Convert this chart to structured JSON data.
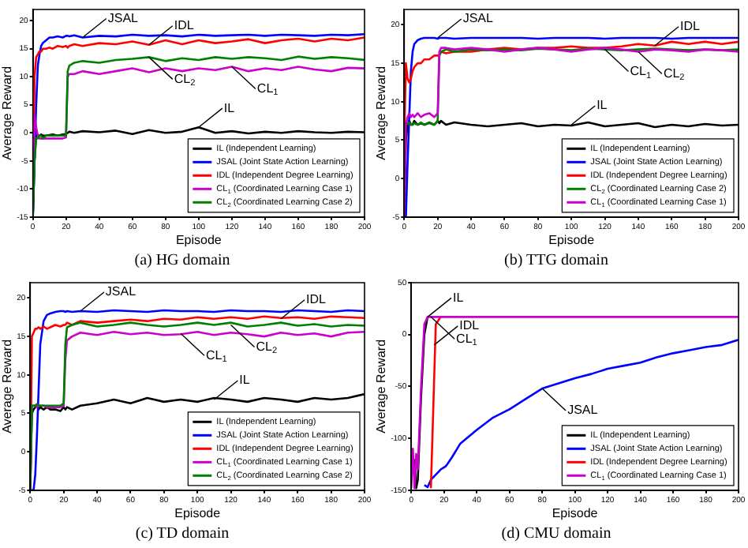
{
  "chart_data": [
    {
      "type": "line",
      "title": "(a) HG domain",
      "xlabel": "Episode",
      "ylabel": "Average Reward",
      "legend": "bottom right",
      "grid": false,
      "marker": "none",
      "x": [
        0,
        1,
        2,
        3,
        4,
        5,
        6,
        8,
        10,
        12,
        15,
        18,
        20,
        21,
        22,
        25,
        30,
        40,
        50,
        60,
        70,
        80,
        90,
        100,
        110,
        120,
        130,
        140,
        150,
        160,
        170,
        180,
        190,
        200
      ],
      "xlim": [
        0,
        200
      ],
      "xticks": [
        0,
        20,
        40,
        60,
        80,
        100,
        120,
        140,
        160,
        180,
        200
      ],
      "ylim": [
        -15,
        22
      ],
      "yticks": [
        -15,
        -10,
        -5,
        0,
        5,
        10,
        15,
        20
      ],
      "series": [
        {
          "name": "IL (Independent Learning)",
          "color": "#000000",
          "values": [
            -15,
            -5,
            0,
            -0.5,
            -0.5,
            -0.3,
            -0.5,
            -0.5,
            -0.4,
            -0.3,
            -0.5,
            -0.3,
            -0.2,
            0,
            0.2,
            0,
            0.3,
            0.1,
            0.4,
            -0.2,
            0.5,
            0,
            0.2,
            1,
            0,
            0.3,
            -0.1,
            0.2,
            0,
            0.3,
            0.1,
            0,
            0.2,
            0.1
          ]
        },
        {
          "name": "JSAL (Joint State Action Learning)",
          "color": "#0000ff",
          "values": [
            -15,
            -5,
            5,
            12,
            14,
            15.5,
            16,
            16.5,
            17,
            17,
            17.2,
            17,
            17.3,
            17.3,
            17.2,
            17.4,
            17,
            17.3,
            17.2,
            17.5,
            17.3,
            17.4,
            17.2,
            17.5,
            17.3,
            17.4,
            17.5,
            17.3,
            17.5,
            17.4,
            17.3,
            17.5,
            17.4,
            17.6
          ]
        },
        {
          "name": "IDL (Independent Degree Learning)",
          "color": "#ff0000",
          "values": [
            -15,
            10,
            13.5,
            14,
            14.5,
            14.5,
            15,
            15,
            15.2,
            15,
            15.5,
            15.3,
            15.5,
            15.2,
            15.5,
            15.8,
            15.5,
            16,
            15.8,
            16.3,
            15.7,
            16.5,
            15.8,
            16.5,
            16,
            16.3,
            16.7,
            16,
            16.5,
            16.8,
            16.3,
            16.8,
            16.5,
            17
          ]
        },
        {
          "name": "CL$_{1}$ (Coordinated Learning Case 1)",
          "color": "#cc00cc",
          "values": [
            -15,
            3,
            1,
            -0.5,
            -1,
            -1,
            -1,
            -1,
            -1,
            -1,
            -1,
            -1,
            -0.8,
            10,
            10.5,
            10.5,
            11,
            10.5,
            11,
            11.5,
            10.8,
            11.5,
            11,
            11.5,
            11.2,
            11.8,
            11,
            11.5,
            11.2,
            11.8,
            11.3,
            11,
            11.6,
            11.5
          ]
        },
        {
          "name": "CL$_{2}$ (Coordinated Learning Case 2)",
          "color": "#008000",
          "values": [
            -15,
            -5,
            -1,
            -1,
            -0.5,
            -0.5,
            -1,
            -0.5,
            -0.5,
            -0.5,
            -0.5,
            -0.5,
            -0.5,
            11,
            12,
            12.5,
            12.8,
            12.5,
            13,
            13.2,
            13.5,
            12.8,
            13.3,
            13,
            13.5,
            13.2,
            13.5,
            13.3,
            13,
            13.6,
            13.2,
            13.5,
            13.3,
            13
          ]
        }
      ],
      "annotations": [
        {
          "text": "JSAL",
          "x": 30,
          "y": 17
        },
        {
          "text": "IDL",
          "x": 70,
          "y": 15.7
        },
        {
          "text": "CL$_{2}$",
          "x": 70,
          "y": 13.5
        },
        {
          "text": "CL$_{1}$",
          "x": 120,
          "y": 11.8
        },
        {
          "text": "IL",
          "x": 100,
          "y": 1
        }
      ]
    },
    {
      "type": "line",
      "title": "(b) TTG domain",
      "xlabel": "Episode",
      "ylabel": "Average Reward",
      "legend": "bottom right",
      "grid": false,
      "marker": "none",
      "x": [
        0,
        1,
        2,
        3,
        4,
        5,
        6,
        8,
        10,
        12,
        15,
        18,
        20,
        21,
        22,
        25,
        30,
        40,
        50,
        60,
        70,
        80,
        90,
        100,
        110,
        120,
        130,
        140,
        150,
        160,
        170,
        180,
        190,
        200
      ],
      "xlim": [
        0,
        200
      ],
      "xticks": [
        0,
        20,
        40,
        60,
        80,
        100,
        120,
        140,
        160,
        180,
        200
      ],
      "ylim": [
        -5,
        22
      ],
      "yticks": [
        -5,
        0,
        5,
        10,
        15,
        20
      ],
      "series": [
        {
          "name": "IL (Independent Learning)",
          "color": "#000000",
          "values": [
            -5,
            5,
            7,
            7.5,
            7,
            7,
            7.5,
            7,
            7.2,
            7,
            7.3,
            7,
            7.5,
            7.2,
            7.5,
            7,
            7.3,
            7,
            6.8,
            7,
            7.2,
            6.8,
            7,
            6.9,
            7.3,
            6.8,
            7,
            7.2,
            6.7,
            7,
            6.8,
            7.1,
            6.9,
            7
          ]
        },
        {
          "name": "JSAL (Joint State Action Learning)",
          "color": "#0000ff",
          "values": [
            -5,
            -5,
            2,
            8,
            14,
            16.5,
            17.5,
            18,
            18.2,
            18.3,
            18.3,
            18.3,
            18.2,
            18.3,
            18.3,
            18.3,
            18.2,
            18.3,
            18.3,
            18.3,
            18.3,
            18.2,
            18.3,
            18.3,
            18.3,
            18.2,
            18.3,
            18.3,
            18.3,
            18.2,
            18.3,
            18.3,
            18.3,
            18.3
          ]
        },
        {
          "name": "IDL (Independent Degree Learning)",
          "color": "#ff0000",
          "values": [
            5,
            15,
            13,
            12.5,
            13,
            14,
            14.5,
            15,
            15,
            15.5,
            15.5,
            16,
            16,
            16,
            16.5,
            16.3,
            16.5,
            16.5,
            16.8,
            17,
            16.8,
            17,
            17,
            17.2,
            17,
            17,
            17.2,
            17.5,
            17.3,
            17.8,
            17.5,
            17.8,
            17.5,
            17.8
          ]
        },
        {
          "name": "CL$_{2}$ (Coordinated Learning Case 2)",
          "color": "#008000",
          "values": [
            null,
            null,
            7,
            7.3,
            7,
            7,
            7.2,
            7,
            7.3,
            7,
            7.2,
            7,
            7.5,
            16,
            16.5,
            16.8,
            16.5,
            16.8,
            16.7,
            16.8,
            16.7,
            16.9,
            16.8,
            16.7,
            16.9,
            16.8,
            16.7,
            16.8,
            16.9,
            16.8,
            16.7,
            16.8,
            16.7,
            16.8
          ]
        },
        {
          "name": "CL$_{1}$ (Coordinated Learning Case 1)",
          "color": "#cc00cc",
          "values": [
            -5,
            7,
            8,
            8.5,
            8,
            8.3,
            8,
            8.5,
            8,
            8.3,
            8.5,
            8,
            8.5,
            16.5,
            17,
            17,
            16.8,
            17,
            16.8,
            16.5,
            16.8,
            17,
            16.8,
            16.5,
            16.8,
            17,
            16.8,
            16.5,
            16.8,
            16.7,
            16.5,
            16.8,
            16.7,
            16.5
          ]
        }
      ],
      "annotations": [
        {
          "text": "JSAL",
          "x": 20,
          "y": 18.3
        },
        {
          "text": "IDL",
          "x": 150,
          "y": 17.3
        },
        {
          "text": "CL$_{1}$",
          "x": 120,
          "y": 16.8
        },
        {
          "text": "CL$_{2}$",
          "x": 140,
          "y": 16.5
        },
        {
          "text": "IL",
          "x": 100,
          "y": 7
        }
      ]
    },
    {
      "type": "line",
      "title": "(c) TD domain",
      "xlabel": "Episode",
      "ylabel": "Average Reward",
      "legend": "bottom right",
      "grid": false,
      "marker": "none",
      "x": [
        0,
        1,
        2,
        3,
        4,
        5,
        6,
        8,
        10,
        12,
        15,
        18,
        20,
        21,
        22,
        25,
        30,
        40,
        50,
        60,
        70,
        80,
        90,
        100,
        110,
        120,
        130,
        140,
        150,
        160,
        170,
        180,
        190,
        200
      ],
      "xlim": [
        0,
        200
      ],
      "xticks": [
        0,
        20,
        40,
        60,
        80,
        100,
        120,
        140,
        160,
        180,
        200
      ],
      "ylim": [
        -5,
        22
      ],
      "yticks": [
        -5,
        0,
        5,
        10,
        15,
        20
      ],
      "series": [
        {
          "name": "IL (Independent Learning)",
          "color": "#000000",
          "values": [
            -5,
            5,
            5.5,
            5.8,
            6,
            5.5,
            5.8,
            5.5,
            5.8,
            5.5,
            5.5,
            5.3,
            5.8,
            5.5,
            5.8,
            5.5,
            6,
            6.3,
            6.8,
            6.3,
            7,
            6.5,
            6.8,
            6.5,
            7,
            6.8,
            6.5,
            7,
            6.8,
            6.5,
            7,
            6.8,
            7,
            7.5
          ]
        },
        {
          "name": "JSAL (Joint State Action Learning)",
          "color": "#0000ff",
          "values": [
            -5,
            -5,
            -5,
            -3,
            2,
            8,
            14,
            17,
            17.8,
            18,
            18.2,
            18.3,
            18.3,
            18.2,
            18.3,
            18.2,
            18.3,
            18.2,
            18.4,
            18.3,
            18.2,
            18.4,
            18.3,
            18.3,
            18.2,
            18.4,
            18.3,
            18.3,
            18.2,
            18.4,
            18.3,
            18.2,
            18.4,
            18.3
          ]
        },
        {
          "name": "IDL (Independent Degree Learning)",
          "color": "#ff0000",
          "values": [
            -5,
            15,
            15.5,
            16,
            16,
            16.2,
            16,
            16.3,
            16,
            16.2,
            16.5,
            16.3,
            16.5,
            16.5,
            16.8,
            16.5,
            17,
            16.8,
            17,
            17.2,
            17,
            17.3,
            17.2,
            17.5,
            17.3,
            17.5,
            17.3,
            17.6,
            17.4,
            17.5,
            17.3,
            17.6,
            17.5,
            17.4
          ]
        },
        {
          "name": "CL$_{1}$ (Coordinated Learning Case 1)",
          "color": "#cc00cc",
          "values": [
            -5,
            6,
            6,
            6,
            5.8,
            6,
            6,
            6,
            5.8,
            5.8,
            5.8,
            5.8,
            6,
            12,
            14.5,
            15,
            15.5,
            15.2,
            15.6,
            15.3,
            15.5,
            15.2,
            15.3,
            15.6,
            15.2,
            15.5,
            15.3,
            15,
            15.5,
            15.2,
            15.4,
            15,
            15.5,
            15.6
          ]
        },
        {
          "name": "CL$_{2}$ (Coordinated Learning Case 2)",
          "color": "#008000",
          "values": [
            -5,
            6,
            6,
            6,
            6.2,
            6,
            6,
            6,
            6,
            6,
            6,
            6,
            6.3,
            14,
            16.2,
            16.5,
            16.8,
            16.3,
            16.5,
            16.8,
            16.5,
            16.3,
            16.5,
            16.8,
            16.5,
            16.8,
            16.3,
            16.5,
            16.8,
            16.4,
            16.6,
            16.3,
            16.5,
            16.4
          ]
        }
      ],
      "annotations": [
        {
          "text": "JSAL",
          "x": 30,
          "y": 18.3
        },
        {
          "text": "IDL",
          "x": 150,
          "y": 17.3
        },
        {
          "text": "CL$_{1}$",
          "x": 90,
          "y": 15.4
        },
        {
          "text": "CL$_{2}$",
          "x": 120,
          "y": 16.5
        },
        {
          "text": "IL",
          "x": 110,
          "y": 6.8
        }
      ]
    },
    {
      "type": "line",
      "title": "(d) CMU domain",
      "xlabel": "Episode",
      "ylabel": "Average Reward",
      "legend": "bottom right",
      "grid": false,
      "marker": "none",
      "x": [
        0,
        1,
        2,
        3,
        4,
        5,
        6,
        8,
        10,
        12,
        15,
        18,
        20,
        21,
        22,
        25,
        30,
        40,
        50,
        60,
        70,
        80,
        90,
        100,
        110,
        120,
        130,
        140,
        150,
        160,
        170,
        180,
        190,
        200
      ],
      "xlim": [
        0,
        200
      ],
      "xticks": [
        0,
        20,
        40,
        60,
        80,
        100,
        120,
        140,
        160,
        180,
        200
      ],
      "ylim": [
        -150,
        50
      ],
      "yticks": [
        -150,
        -100,
        -50,
        0,
        50
      ],
      "series": [
        {
          "name": "IL (Independent Learning)",
          "color": "#000000",
          "values": [
            null,
            null,
            -120,
            -148,
            -140,
            -100,
            -60,
            0,
            17,
            null,
            null,
            null,
            null,
            null,
            null,
            null,
            null,
            null,
            null,
            null,
            null,
            null,
            null,
            null,
            null,
            null,
            null,
            null,
            null,
            null,
            null,
            null,
            null,
            null
          ]
        },
        {
          "name": "JSAL (Joint State Action Learning)",
          "color": "#0000ff",
          "values": [
            null,
            null,
            null,
            null,
            null,
            null,
            null,
            -145,
            -147,
            -140,
            -135,
            -130,
            -128,
            -127,
            -125,
            -118,
            -105,
            -92,
            -80,
            -72,
            -62,
            -52,
            -47,
            -42,
            -38,
            -33,
            -30,
            -27,
            -22,
            -18,
            -15,
            -12,
            -10,
            -5
          ]
        },
        {
          "name": "IDL (Independent Degree Learning)",
          "color": "#ff0000",
          "values": [
            null,
            null,
            null,
            null,
            null,
            null,
            null,
            null,
            null,
            -148,
            10,
            17,
            null,
            null,
            null,
            null,
            null,
            null,
            null,
            null,
            null,
            null,
            null,
            null,
            null,
            null,
            null,
            null,
            null,
            null,
            null,
            null,
            null,
            null
          ]
        },
        {
          "name": "CL$_{1}$ (Coordinated Learning Case 1)",
          "color": "#cc00cc",
          "values": [
            -148,
            -110,
            -148,
            -115,
            -130,
            -90,
            -50,
            10,
            17,
            17,
            17,
            17,
            17,
            17,
            17,
            17,
            17,
            17,
            17,
            17,
            17,
            17,
            17,
            17,
            17,
            17,
            17,
            17,
            17,
            17,
            17,
            17,
            17,
            17
          ]
        }
      ],
      "annotations": [
        {
          "text": "IL",
          "x": 10,
          "y": 17
        },
        {
          "text": "IDL",
          "x": 14,
          "y": -10
        },
        {
          "text": "CL$_{1}$",
          "x": 12,
          "y": 17
        },
        {
          "text": "JSAL",
          "x": 80,
          "y": -52
        }
      ]
    }
  ]
}
